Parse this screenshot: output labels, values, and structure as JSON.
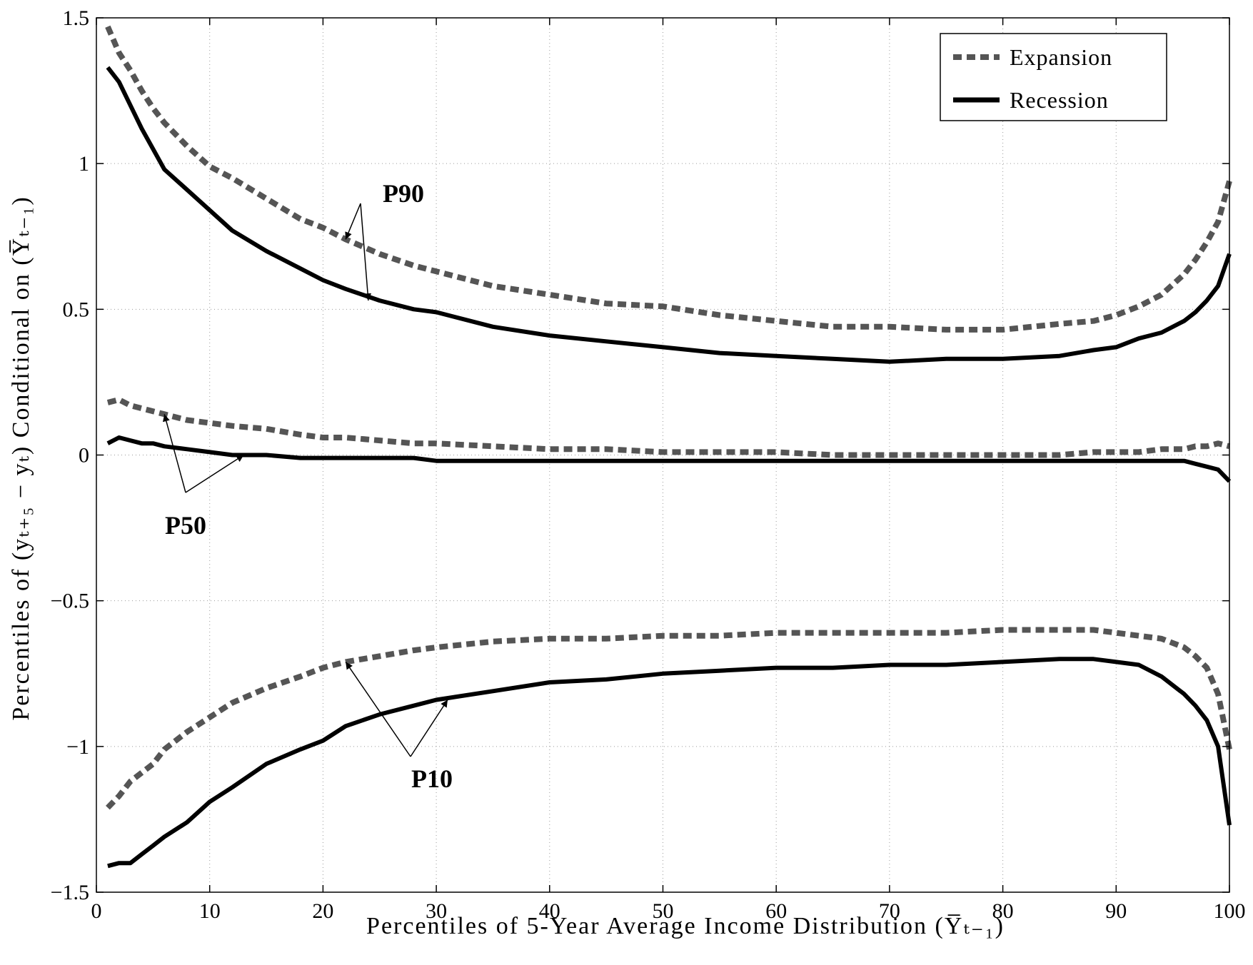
{
  "chart_data": {
    "type": "line",
    "title": "",
    "xlabel": "Percentiles of 5-Year Average Income Distribution (Y̅ₜ₋₁)",
    "ylabel": "Percentiles of (yₜ₊₅ − yₜ) Conditional on (Y̅ₜ₋₁)",
    "xlim": [
      0,
      100
    ],
    "ylim": [
      -1.5,
      1.5
    ],
    "x_ticks": [
      "0",
      "10",
      "20",
      "30",
      "40",
      "50",
      "60",
      "70",
      "80",
      "90",
      "100"
    ],
    "y_ticks": [
      "−1.5",
      "−1",
      "−0.5",
      "0",
      "0.5",
      "1",
      "1.5"
    ],
    "grid": true,
    "legend_position": "top-right",
    "legend": [
      "Expansion",
      "Recession"
    ],
    "colors": {
      "expansion": "#555555",
      "recession": "#000000"
    },
    "x": [
      1,
      2,
      3,
      4,
      5,
      6,
      8,
      10,
      12,
      15,
      18,
      20,
      22,
      25,
      28,
      30,
      35,
      40,
      45,
      50,
      55,
      60,
      65,
      70,
      75,
      80,
      85,
      88,
      90,
      92,
      94,
      96,
      97,
      98,
      99,
      100
    ],
    "series": [
      {
        "name": "Expansion",
        "percentile": "P90",
        "style": "dashed",
        "values": [
          1.47,
          1.38,
          1.32,
          1.25,
          1.19,
          1.14,
          1.06,
          0.99,
          0.95,
          0.88,
          0.81,
          0.78,
          0.74,
          0.69,
          0.65,
          0.63,
          0.58,
          0.55,
          0.52,
          0.51,
          0.48,
          0.46,
          0.44,
          0.44,
          0.43,
          0.43,
          0.45,
          0.46,
          0.48,
          0.51,
          0.55,
          0.62,
          0.67,
          0.73,
          0.8,
          0.94
        ]
      },
      {
        "name": "Recession",
        "percentile": "P90",
        "style": "solid",
        "values": [
          1.33,
          1.28,
          1.2,
          1.12,
          1.05,
          0.98,
          0.91,
          0.84,
          0.77,
          0.7,
          0.64,
          0.6,
          0.57,
          0.53,
          0.5,
          0.49,
          0.44,
          0.41,
          0.39,
          0.37,
          0.35,
          0.34,
          0.33,
          0.32,
          0.33,
          0.33,
          0.34,
          0.36,
          0.37,
          0.4,
          0.42,
          0.46,
          0.49,
          0.53,
          0.58,
          0.69
        ]
      },
      {
        "name": "Expansion",
        "percentile": "P50",
        "style": "dashed",
        "values": [
          0.18,
          0.19,
          0.17,
          0.16,
          0.15,
          0.14,
          0.12,
          0.11,
          0.1,
          0.09,
          0.07,
          0.06,
          0.06,
          0.05,
          0.04,
          0.04,
          0.03,
          0.02,
          0.02,
          0.01,
          0.01,
          0.01,
          0.0,
          0.0,
          0.0,
          0.0,
          0.0,
          0.01,
          0.01,
          0.01,
          0.02,
          0.02,
          0.03,
          0.03,
          0.04,
          0.03
        ]
      },
      {
        "name": "Recession",
        "percentile": "P50",
        "style": "solid",
        "values": [
          0.04,
          0.06,
          0.05,
          0.04,
          0.04,
          0.03,
          0.02,
          0.01,
          0.0,
          0.0,
          -0.01,
          -0.01,
          -0.01,
          -0.01,
          -0.01,
          -0.02,
          -0.02,
          -0.02,
          -0.02,
          -0.02,
          -0.02,
          -0.02,
          -0.02,
          -0.02,
          -0.02,
          -0.02,
          -0.02,
          -0.02,
          -0.02,
          -0.02,
          -0.02,
          -0.02,
          -0.03,
          -0.04,
          -0.05,
          -0.09
        ]
      },
      {
        "name": "Expansion",
        "percentile": "P10",
        "style": "dashed",
        "values": [
          -1.21,
          -1.17,
          -1.12,
          -1.09,
          -1.06,
          -1.01,
          -0.95,
          -0.9,
          -0.85,
          -0.8,
          -0.76,
          -0.73,
          -0.71,
          -0.69,
          -0.67,
          -0.66,
          -0.64,
          -0.63,
          -0.63,
          -0.62,
          -0.62,
          -0.61,
          -0.61,
          -0.61,
          -0.61,
          -0.6,
          -0.6,
          -0.6,
          -0.61,
          -0.62,
          -0.63,
          -0.66,
          -0.69,
          -0.73,
          -0.82,
          -1.01
        ]
      },
      {
        "name": "Recession",
        "percentile": "P10",
        "style": "solid",
        "values": [
          -1.41,
          -1.4,
          -1.4,
          -1.37,
          -1.34,
          -1.31,
          -1.26,
          -1.19,
          -1.14,
          -1.06,
          -1.01,
          -0.98,
          -0.93,
          -0.89,
          -0.86,
          -0.84,
          -0.81,
          -0.78,
          -0.77,
          -0.75,
          -0.74,
          -0.73,
          -0.73,
          -0.72,
          -0.72,
          -0.71,
          -0.7,
          -0.7,
          -0.71,
          -0.72,
          -0.76,
          -0.82,
          -0.86,
          -0.91,
          -1.0,
          -1.27
        ]
      }
    ],
    "annotations": [
      {
        "text": "P90",
        "points_to": [
          {
            "series": "Expansion",
            "x": 22
          },
          {
            "series": "Recession",
            "x": 24
          }
        ]
      },
      {
        "text": "P50",
        "points_to": [
          {
            "series": "Expansion",
            "x": 6
          },
          {
            "series": "Recession",
            "x": 13
          }
        ]
      },
      {
        "text": "P10",
        "points_to": [
          {
            "series": "Expansion",
            "x": 22
          },
          {
            "series": "Recession",
            "x": 31
          }
        ]
      }
    ]
  }
}
